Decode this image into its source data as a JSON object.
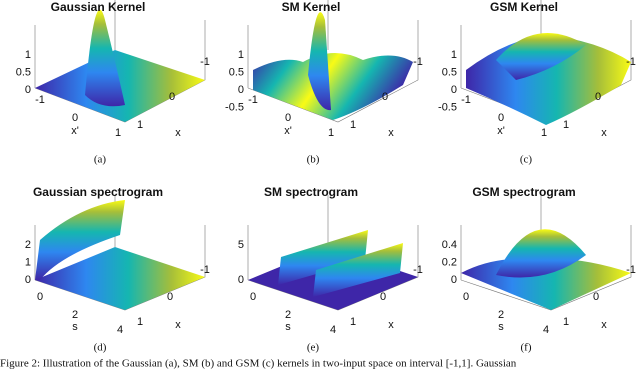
{
  "panels": [
    {
      "title": "Gaussian Kernel",
      "caption": "(a)",
      "zticks": [
        "1",
        "0.5",
        "0"
      ],
      "left_ticks": [
        "-1",
        "0",
        "1"
      ],
      "right_ticks": [
        "-1",
        "0",
        "1"
      ],
      "left_label": "x'",
      "right_label": "x"
    },
    {
      "title": "SM Kernel",
      "caption": "(b)",
      "zticks": [
        "1",
        "0.5",
        "0",
        "-0.5"
      ],
      "left_ticks": [
        "-1",
        "0",
        "1"
      ],
      "right_ticks": [
        "-1",
        "0",
        "1"
      ],
      "left_label": "x'",
      "right_label": "x"
    },
    {
      "title": "GSM Kernel",
      "caption": "(c)",
      "zticks": [
        "1",
        "0.5",
        "0",
        "-0.5"
      ],
      "left_ticks": [
        "-1",
        "0",
        "1"
      ],
      "right_ticks": [
        "-1",
        "0",
        "1"
      ],
      "left_label": "x'",
      "right_label": "x"
    },
    {
      "title": "Gaussian spectrogram",
      "caption": "(d)",
      "zticks": [
        "2",
        "1",
        "0"
      ],
      "left_ticks": [
        "0",
        "2",
        "4"
      ],
      "right_ticks": [
        "-1",
        "0",
        "1"
      ],
      "left_label": "s",
      "right_label": "x"
    },
    {
      "title": "SM spectrogram",
      "caption": "(e)",
      "zticks": [
        "5",
        "0"
      ],
      "left_ticks": [
        "0",
        "2",
        "4"
      ],
      "right_ticks": [
        "-1",
        "0",
        "1"
      ],
      "left_label": "s",
      "right_label": "x"
    },
    {
      "title": "GSM spectrogram",
      "caption": "(f)",
      "zticks": [
        "0.4",
        "0.2",
        "0"
      ],
      "left_ticks": [
        "0",
        "2",
        "4"
      ],
      "right_ticks": [
        "-1",
        "0",
        "1"
      ],
      "left_label": "s",
      "right_label": "x"
    }
  ],
  "figure_caption": "Figure 2: Illustration of the Gaussian (a), SM (b) and GSM (c) kernels in two-input space on interval [-1,1]. Gaussian"
}
